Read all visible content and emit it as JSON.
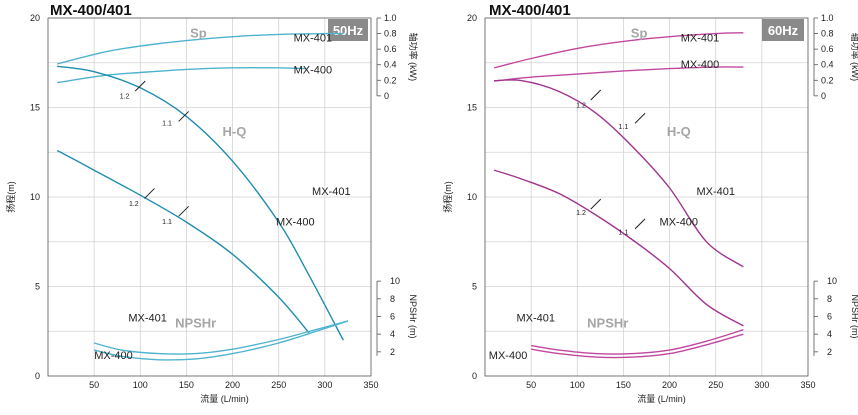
{
  "chart_data": [
    {
      "type": "line",
      "title": "MX-400/401",
      "frequency_badge": "50Hz",
      "colors": {
        "line": "#1f8db0",
        "line_light": "#4fb3cf",
        "grid": "#d3d3d3",
        "badge": "#8a8a8a"
      },
      "xlabel": "流量 (L/min)",
      "ylabel_left": "扬程(m)",
      "ylabel_right_top": "轴功率 (kW)",
      "ylabel_right_bottom": "NPSHr (m)",
      "xlim": [
        0,
        350
      ],
      "x_ticks": [
        "50",
        "100",
        "150",
        "200",
        "250",
        "300",
        "350"
      ],
      "head_ylim": [
        0,
        20
      ],
      "head_ticks": [
        "0",
        "5",
        "10",
        "15",
        "20"
      ],
      "power_ticks": [
        "0",
        "0.2",
        "0.4",
        "0.6",
        "0.8",
        "1.0"
      ],
      "npsh_ticks": [
        "2",
        "4",
        "6",
        "8",
        "10"
      ],
      "grid": true,
      "curve_labels": {
        "power": "Sp",
        "head": "H-Q",
        "npsh": "NPSHr"
      },
      "power_series": [
        {
          "name": "MX-401",
          "label_xy": [
            287,
            18.7
          ],
          "x": [
            10,
            60,
            100,
            150,
            200,
            250,
            300,
            320
          ],
          "y": [
            0.41,
            0.56,
            0.64,
            0.71,
            0.76,
            0.79,
            0.8,
            0.8
          ]
        },
        {
          "name": "MX-400",
          "label_xy": [
            287,
            16.9
          ],
          "x": [
            10,
            60,
            100,
            150,
            200,
            250,
            280
          ],
          "y": [
            0.17,
            0.26,
            0.3,
            0.34,
            0.36,
            0.36,
            0.35
          ]
        }
      ],
      "head_series": [
        {
          "name": "MX-401",
          "label_xy": [
            307,
            10.1
          ],
          "x": [
            10,
            50,
            100,
            150,
            200,
            250,
            280,
            320
          ],
          "y": [
            17.3,
            17.0,
            16.1,
            14.5,
            12.0,
            8.6,
            5.9,
            2.0
          ]
        },
        {
          "name": "MX-400",
          "label_xy": [
            268,
            8.4
          ],
          "x": [
            10,
            50,
            100,
            150,
            200,
            250,
            283
          ],
          "y": [
            12.6,
            11.5,
            10.1,
            8.6,
            6.8,
            4.4,
            2.4
          ]
        }
      ],
      "npsh_series": [
        {
          "name": "MX-401",
          "label_xy": [
            108,
            3.05
          ],
          "x": [
            50,
            80,
            120,
            160,
            200,
            250,
            290,
            325
          ],
          "y": [
            3.0,
            2.2,
            1.8,
            1.8,
            2.3,
            3.4,
            4.5,
            5.5
          ]
        },
        {
          "name": "MX-400",
          "label_xy": [
            71,
            0.95
          ],
          "x": [
            50,
            80,
            120,
            160,
            200,
            250,
            290,
            325
          ],
          "y": [
            2.2,
            1.5,
            1.1,
            1.2,
            1.8,
            3.0,
            4.3,
            5.5
          ]
        }
      ],
      "impeller_marks": [
        {
          "label": "1.2",
          "x": 100,
          "y": 16.2,
          "label_xy": [
            83,
            15.5
          ]
        },
        {
          "label": "1.1",
          "x": 147,
          "y": 14.5,
          "label_xy": [
            129,
            14.0
          ]
        },
        {
          "label": "1.2",
          "x": 110,
          "y": 10.2,
          "label_xy": [
            93,
            9.5
          ]
        },
        {
          "label": "1.1",
          "x": 147,
          "y": 9.2,
          "label_xy": [
            129,
            8.5
          ]
        }
      ]
    },
    {
      "type": "line",
      "title": "MX-400/401",
      "frequency_badge": "60Hz",
      "colors": {
        "line": "#a0338e",
        "line_light": "#c2489f",
        "grid": "#d3d3d3",
        "badge": "#8a8a8a"
      },
      "xlabel": "流量 (L/min)",
      "ylabel_left": "扬程(m)",
      "ylabel_right_top": "轴功率 (kW)",
      "ylabel_right_bottom": "NPSHr (m)",
      "xlim": [
        0,
        350
      ],
      "x_ticks": [
        "50",
        "100",
        "150",
        "200",
        "250",
        "300",
        "350"
      ],
      "head_ylim": [
        0,
        20
      ],
      "head_ticks": [
        "0",
        "5",
        "10",
        "15",
        "20"
      ],
      "power_ticks": [
        "0",
        "0.2",
        "0.4",
        "0.6",
        "0.8",
        "1.0"
      ],
      "npsh_ticks": [
        "2",
        "4",
        "6",
        "8",
        "10"
      ],
      "grid": true,
      "curve_labels": {
        "power": "Sp",
        "head": "H-Q",
        "npsh": "NPSHr"
      },
      "power_series": [
        {
          "name": "MX-401",
          "label_xy": [
            233,
            18.7
          ],
          "x": [
            10,
            50,
            100,
            150,
            200,
            250,
            280
          ],
          "y": [
            0.36,
            0.48,
            0.61,
            0.7,
            0.76,
            0.8,
            0.81
          ]
        },
        {
          "name": "MX-400",
          "label_xy": [
            233,
            17.2
          ],
          "x": [
            10,
            50,
            100,
            150,
            200,
            250,
            280
          ],
          "y": [
            0.19,
            0.24,
            0.28,
            0.32,
            0.35,
            0.37,
            0.37
          ]
        }
      ],
      "head_series": [
        {
          "name": "MX-401",
          "label_xy": [
            250,
            10.1
          ],
          "x": [
            10,
            40,
            80,
            120,
            160,
            200,
            240,
            280
          ],
          "y": [
            16.5,
            16.5,
            15.9,
            14.7,
            12.8,
            10.5,
            7.5,
            6.1
          ]
        },
        {
          "name": "MX-400",
          "label_xy": [
            210,
            8.4
          ],
          "x": [
            10,
            40,
            80,
            120,
            160,
            200,
            240,
            280
          ],
          "y": [
            11.5,
            11.0,
            10.2,
            9.0,
            7.6,
            6.0,
            4.0,
            2.8
          ]
        }
      ],
      "npsh_series": [
        {
          "name": "MX-401",
          "label_xy": [
            55,
            3.05
          ],
          "x": [
            50,
            80,
            120,
            160,
            200,
            240,
            280
          ],
          "y": [
            2.7,
            2.2,
            1.8,
            1.8,
            2.2,
            3.2,
            4.5
          ]
        },
        {
          "name": "MX-400",
          "label_xy": [
            25,
            0.95
          ],
          "x": [
            50,
            80,
            120,
            160,
            200,
            240,
            280
          ],
          "y": [
            2.3,
            1.8,
            1.4,
            1.4,
            1.8,
            2.8,
            4.0
          ]
        }
      ],
      "impeller_marks": [
        {
          "label": "1.2",
          "x": 120,
          "y": 15.7,
          "label_xy": [
            104,
            15.0
          ]
        },
        {
          "label": "1.1",
          "x": 168,
          "y": 14.4,
          "label_xy": [
            150,
            13.8
          ]
        },
        {
          "label": "1.2",
          "x": 120,
          "y": 9.6,
          "label_xy": [
            104,
            9.0
          ]
        },
        {
          "label": "1.1",
          "x": 168,
          "y": 8.5,
          "label_xy": [
            150,
            7.9
          ]
        }
      ]
    }
  ]
}
